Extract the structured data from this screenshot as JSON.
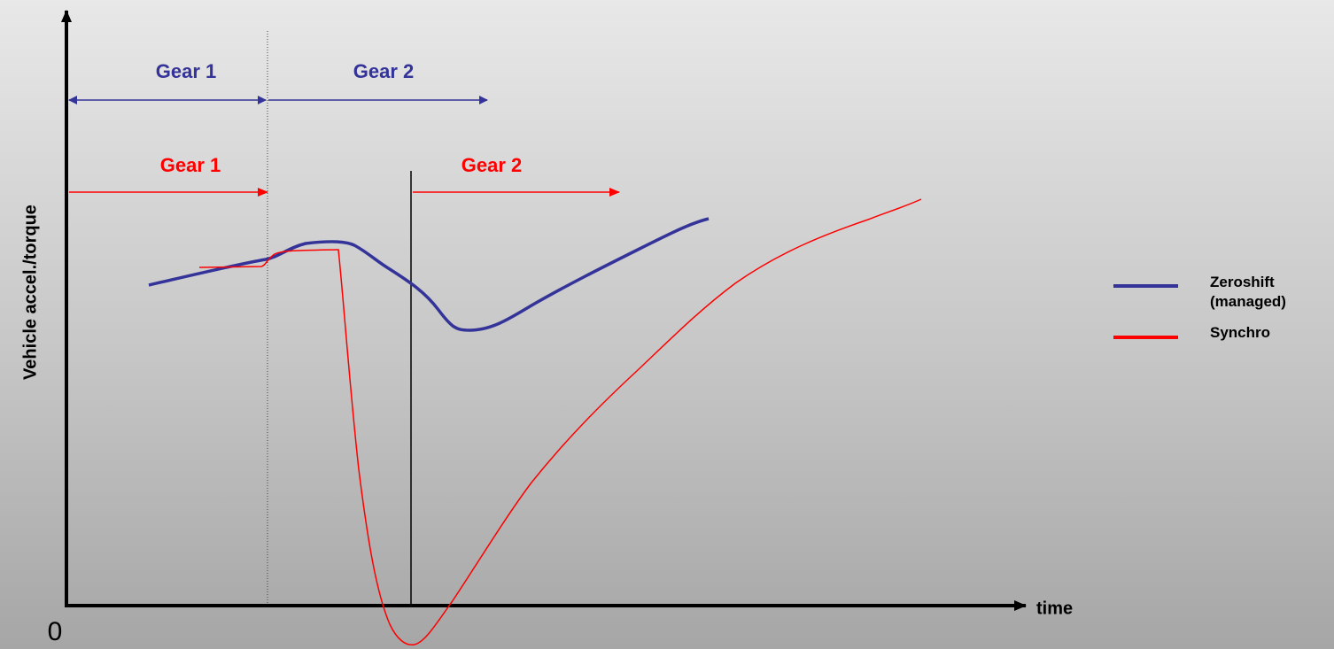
{
  "axes": {
    "y_label": "Vehicle accel./torque",
    "x_label": "time",
    "origin": "0"
  },
  "zeroshift_gears": {
    "gear1": "Gear 1",
    "gear2": "Gear 2"
  },
  "synchro_gears": {
    "gear1": "Gear 1",
    "gear2": "Gear 2"
  },
  "legend": {
    "items": [
      {
        "label": "Zeroshift (managed)",
        "color": "#333399"
      },
      {
        "label": "Synchro",
        "color": "#ff0000"
      }
    ]
  }
}
